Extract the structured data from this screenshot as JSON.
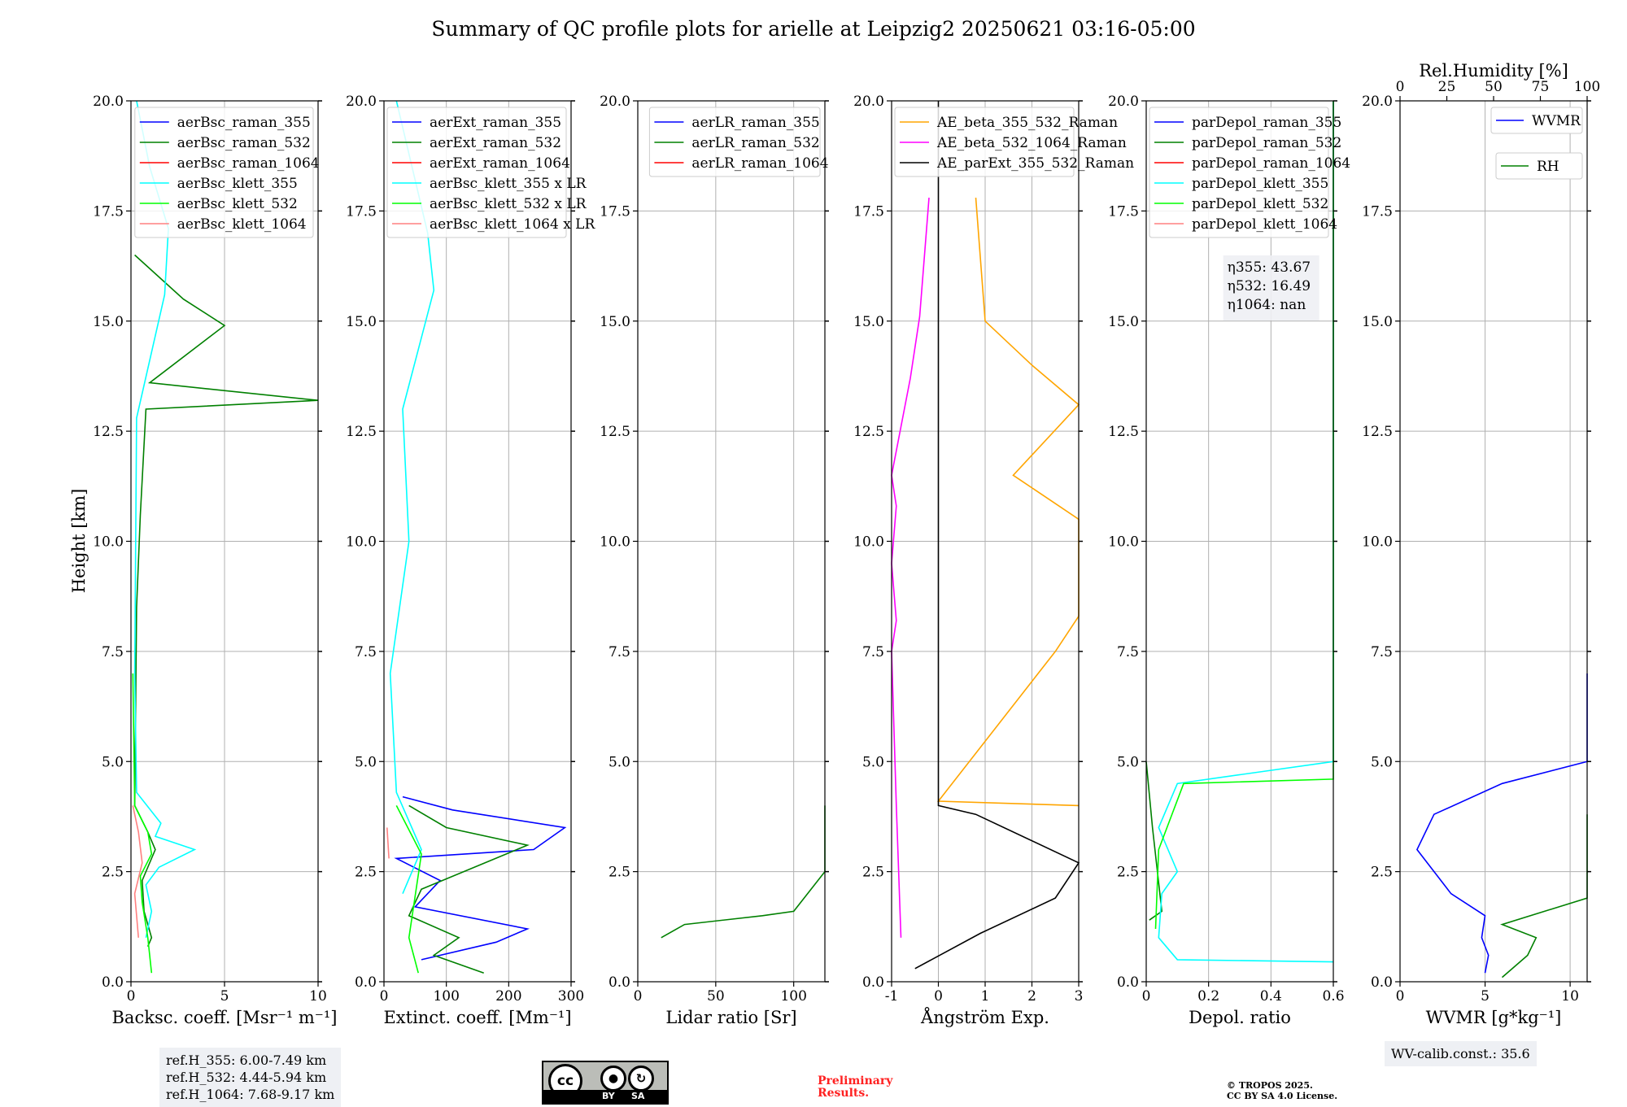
{
  "title": "Summary of QC profile plots for arielle at Leipzig2 20250621 03:16-05:00",
  "chart_data": [
    {
      "type": "line",
      "panel": "backscatter",
      "xlabel": "Backsc. coeff. [Msr⁻¹ m⁻¹]",
      "ylabel": "Height [km]",
      "xlim": [
        0,
        10
      ],
      "ylim": [
        0,
        20
      ],
      "xticks": [
        0,
        5,
        10
      ],
      "yticks": [
        0.0,
        2.5,
        5.0,
        7.5,
        10.0,
        12.5,
        15.0,
        17.5,
        20.0
      ],
      "legend_position": "top-right",
      "series": [
        {
          "name": "aerBsc_raman_355",
          "color": "#0000ff",
          "points": []
        },
        {
          "name": "aerBsc_raman_532",
          "color": "#008000",
          "points": [
            [
              0.9,
              0.8
            ],
            [
              1.1,
              1.0
            ],
            [
              0.7,
              1.6
            ],
            [
              0.6,
              2.3
            ],
            [
              1.3,
              3.0
            ],
            [
              0.9,
              3.4
            ],
            [
              0.2,
              4.0
            ],
            [
              0.3,
              8.5
            ],
            [
              0.5,
              10.6
            ],
            [
              0.8,
              13.0
            ],
            [
              10,
              13.2
            ],
            [
              1.0,
              13.6
            ],
            [
              5.0,
              14.9
            ],
            [
              2.8,
              15.5
            ],
            [
              0.2,
              16.5
            ]
          ]
        },
        {
          "name": "aerBsc_raman_1064",
          "color": "#ff0000",
          "points": []
        },
        {
          "name": "aerBsc_klett_355",
          "color": "#00ffff",
          "points": [
            [
              0.8,
              1.0
            ],
            [
              1.1,
              1.6
            ],
            [
              0.8,
              2.2
            ],
            [
              1.5,
              2.6
            ],
            [
              3.4,
              3.0
            ],
            [
              1.3,
              3.3
            ],
            [
              1.6,
              3.6
            ],
            [
              0.3,
              4.3
            ],
            [
              0.2,
              7.0
            ],
            [
              0.3,
              12.8
            ],
            [
              1.8,
              15.6
            ],
            [
              2.0,
              17.1
            ],
            [
              1.0,
              18.5
            ],
            [
              0.3,
              20.0
            ]
          ]
        },
        {
          "name": "aerBsc_klett_532",
          "color": "#00ff00",
          "points": [
            [
              1.1,
              0.2
            ],
            [
              0.9,
              1.0
            ],
            [
              0.6,
              1.8
            ],
            [
              0.5,
              2.4
            ],
            [
              1.1,
              2.9
            ],
            [
              0.9,
              3.4
            ],
            [
              0.2,
              4.0
            ],
            [
              0.1,
              7.0
            ]
          ]
        },
        {
          "name": "aerBsc_klett_1064",
          "color": "#ff8080",
          "points": [
            [
              0.4,
              1.0
            ],
            [
              0.2,
              2.0
            ],
            [
              0.6,
              2.7
            ],
            [
              0.4,
              3.4
            ],
            [
              0.1,
              4.0
            ]
          ]
        }
      ]
    },
    {
      "type": "line",
      "panel": "extinction",
      "xlabel": "Extinct. coeff. [Mm⁻¹]",
      "xlim": [
        0,
        300
      ],
      "ylim": [
        0,
        20
      ],
      "xticks": [
        0,
        100,
        200,
        300
      ],
      "yticks": [
        0.0,
        2.5,
        5.0,
        7.5,
        10.0,
        12.5,
        15.0,
        17.5,
        20.0
      ],
      "legend_position": "top-right",
      "series": [
        {
          "name": "aerExt_raman_355",
          "color": "#0000ff",
          "points": [
            [
              60,
              0.5
            ],
            [
              180,
              0.9
            ],
            [
              230,
              1.2
            ],
            [
              50,
              1.7
            ],
            [
              90,
              2.3
            ],
            [
              20,
              2.8
            ],
            [
              240,
              3.0
            ],
            [
              290,
              3.5
            ],
            [
              110,
              3.9
            ],
            [
              30,
              4.2
            ]
          ]
        },
        {
          "name": "aerExt_raman_532",
          "color": "#008000",
          "points": [
            [
              160,
              0.2
            ],
            [
              80,
              0.6
            ],
            [
              120,
              1.0
            ],
            [
              40,
              1.5
            ],
            [
              60,
              2.1
            ],
            [
              230,
              3.1
            ],
            [
              100,
              3.5
            ],
            [
              40,
              4.0
            ]
          ]
        },
        {
          "name": "aerExt_raman_1064",
          "color": "#ff0000",
          "points": [
            [
              10,
              3.5
            ]
          ]
        },
        {
          "name": "aerBsc_klett_355 x LR",
          "color": "#00ffff",
          "points": [
            [
              30,
              2.0
            ],
            [
              60,
              3.0
            ],
            [
              20,
              4.3
            ],
            [
              10,
              7.0
            ],
            [
              40,
              10.0
            ],
            [
              30,
              13.0
            ],
            [
              80,
              15.7
            ],
            [
              70,
              17.0
            ],
            [
              20,
              20.0
            ]
          ]
        },
        {
          "name": "aerBsc_klett_532 x LR",
          "color": "#00ff00",
          "points": [
            [
              55,
              0.2
            ],
            [
              40,
              1.0
            ],
            [
              60,
              2.9
            ],
            [
              20,
              4.0
            ]
          ]
        },
        {
          "name": "aerBsc_klett_1064 x LR",
          "color": "#ff8080",
          "points": [
            [
              8,
              2.8
            ],
            [
              5,
              3.5
            ]
          ]
        }
      ]
    },
    {
      "type": "line",
      "panel": "lidar_ratio",
      "xlabel": "Lidar ratio [Sr]",
      "xlim": [
        0,
        120
      ],
      "ylim": [
        0,
        20
      ],
      "xticks": [
        0,
        50,
        100
      ],
      "yticks": [
        0.0,
        2.5,
        5.0,
        7.5,
        10.0,
        12.5,
        15.0,
        17.5,
        20.0
      ],
      "legend_position": "top-right",
      "series": [
        {
          "name": "aerLR_raman_355",
          "color": "#0000ff",
          "points": []
        },
        {
          "name": "aerLR_raman_532",
          "color": "#008000",
          "points": [
            [
              15,
              1.0
            ],
            [
              30,
              1.3
            ],
            [
              80,
              1.5
            ],
            [
              100,
              1.6
            ],
            [
              120,
              2.5
            ],
            [
              120,
              3.7
            ],
            [
              120,
              4.0
            ]
          ]
        },
        {
          "name": "aerLR_raman_1064",
          "color": "#ff0000",
          "points": []
        }
      ]
    },
    {
      "type": "line",
      "panel": "angstrom",
      "xlabel": "Ångström Exp.",
      "xlim": [
        -1,
        3
      ],
      "ylim": [
        0,
        20
      ],
      "xticks": [
        -1,
        0,
        1,
        2,
        3
      ],
      "yticks": [
        0.0,
        2.5,
        5.0,
        7.5,
        10.0,
        12.5,
        15.0,
        17.5,
        20.0
      ],
      "legend_position": "top-right",
      "series": [
        {
          "name": "AE_beta_355_532_Raman",
          "color": "#ffa500",
          "points": [
            [
              3,
              4.0
            ],
            [
              0,
              4.1
            ],
            [
              2.5,
              7.5
            ],
            [
              3,
              8.3
            ],
            [
              3,
              9.3
            ],
            [
              3,
              10.5
            ],
            [
              1.6,
              11.5
            ],
            [
              3,
              13.1
            ],
            [
              2.0,
              14.0
            ],
            [
              1.0,
              15.0
            ],
            [
              0.8,
              17.8
            ]
          ]
        },
        {
          "name": "AE_beta_532_1064_Raman",
          "color": "#ff00ff",
          "points": [
            [
              -0.8,
              1.0
            ],
            [
              -0.9,
              4.0
            ],
            [
              -1.0,
              7.5
            ],
            [
              -0.9,
              8.2
            ],
            [
              -1.0,
              9.5
            ],
            [
              -0.9,
              10.8
            ],
            [
              -1.0,
              11.5
            ],
            [
              -0.6,
              13.7
            ],
            [
              -0.4,
              15.1
            ],
            [
              -0.2,
              17.8
            ]
          ]
        },
        {
          "name": "AE_parExt_355_532_Raman",
          "color": "#000000",
          "points": [
            [
              -0.5,
              0.3
            ],
            [
              0.9,
              1.1
            ],
            [
              2.5,
              1.9
            ],
            [
              3,
              2.7
            ],
            [
              0.8,
              3.8
            ],
            [
              0,
              4.0
            ],
            [
              0,
              20.0
            ]
          ]
        }
      ]
    },
    {
      "type": "line",
      "panel": "depolarization",
      "xlabel": "Depol. ratio",
      "xlim": [
        0.0,
        0.6
      ],
      "ylim": [
        0,
        20
      ],
      "xticks": [
        0.0,
        0.2,
        0.4,
        0.6
      ],
      "yticks": [
        0.0,
        2.5,
        5.0,
        7.5,
        10.0,
        12.5,
        15.0,
        17.5,
        20.0
      ],
      "legend_position": "top-right",
      "annotations": [
        {
          "label": "η355:",
          "value": "43.67"
        },
        {
          "label": "η532:",
          "value": "16.49"
        },
        {
          "label": "η1064:",
          "value": "nan"
        }
      ],
      "series": [
        {
          "name": "parDepol_raman_355",
          "color": "#0000ff",
          "points": []
        },
        {
          "name": "parDepol_raman_532",
          "color": "#008000",
          "points": [
            [
              0.01,
              1.4
            ],
            [
              0.05,
              1.6
            ],
            [
              0.02,
              3.5
            ],
            [
              0.0,
              5.0
            ]
          ]
        },
        {
          "name": "parDepol_raman_1064",
          "color": "#ff0000",
          "points": []
        },
        {
          "name": "parDepol_klett_355",
          "color": "#00ffff",
          "points": [
            [
              0.6,
              0.45
            ],
            [
              0.1,
              0.5
            ],
            [
              0.04,
              1.0
            ],
            [
              0.05,
              2.0
            ],
            [
              0.1,
              2.5
            ],
            [
              0.04,
              3.5
            ],
            [
              0.1,
              4.5
            ],
            [
              0.6,
              5.0
            ],
            [
              0.6,
              20.0
            ]
          ]
        },
        {
          "name": "parDepol_klett_532",
          "color": "#00ff00",
          "points": [
            [
              0.03,
              1.2
            ],
            [
              0.04,
              3.0
            ],
            [
              0.12,
              4.5
            ],
            [
              0.6,
              4.6
            ],
            [
              0.6,
              20.0
            ]
          ]
        },
        {
          "name": "parDepol_klett_1064",
          "color": "#ff8080",
          "points": []
        }
      ]
    },
    {
      "type": "line",
      "panel": "water_vapor",
      "xlabel": "WVMR [g*kg⁻¹]",
      "xlim": [
        0,
        11
      ],
      "ylim": [
        0,
        20
      ],
      "xticks": [
        0,
        5,
        10
      ],
      "top_axis": {
        "label": "Rel.Humidity [%]",
        "lim": [
          0,
          100
        ],
        "ticks": [
          0,
          25,
          50,
          75,
          100
        ]
      },
      "yticks": [
        0.0,
        2.5,
        5.0,
        7.5,
        10.0,
        12.5,
        15.0,
        17.5,
        20.0
      ],
      "legend_position": "top-right",
      "series": [
        {
          "name": "WVMR",
          "color": "#0000ff",
          "points": [
            [
              5,
              0.2
            ],
            [
              5.2,
              0.6
            ],
            [
              4.8,
              1.0
            ],
            [
              5,
              1.5
            ],
            [
              3,
              2.0
            ],
            [
              1,
              3.0
            ],
            [
              2,
              3.8
            ],
            [
              6,
              4.5
            ],
            [
              11,
              5.0
            ],
            [
              11,
              7.0
            ]
          ]
        },
        {
          "name": "RH",
          "color": "#008000",
          "points": [
            [
              6,
              0.1
            ],
            [
              7.5,
              0.6
            ],
            [
              8,
              1.0
            ],
            [
              6,
              1.3
            ],
            [
              11,
              1.9
            ],
            [
              11,
              3.0
            ],
            [
              11,
              3.8
            ]
          ]
        }
      ]
    }
  ],
  "ref_heights": {
    "l355": "ref.H_355: 6.00-7.49 km",
    "l532": "ref.H_532: 4.44-5.94 km",
    "l1064": "ref.H_1064: 7.68-9.17 km"
  },
  "wv_calib": "WV-calib.const.: 35.6",
  "license_badge": {
    "cc": "cc",
    "by": "BY",
    "sa": "SA"
  },
  "preliminary": {
    "line1": "Preliminary",
    "line2": "Results."
  },
  "copyright": {
    "line1": "© TROPOS 2025.",
    "line2": "CC BY SA 4.0 License."
  }
}
